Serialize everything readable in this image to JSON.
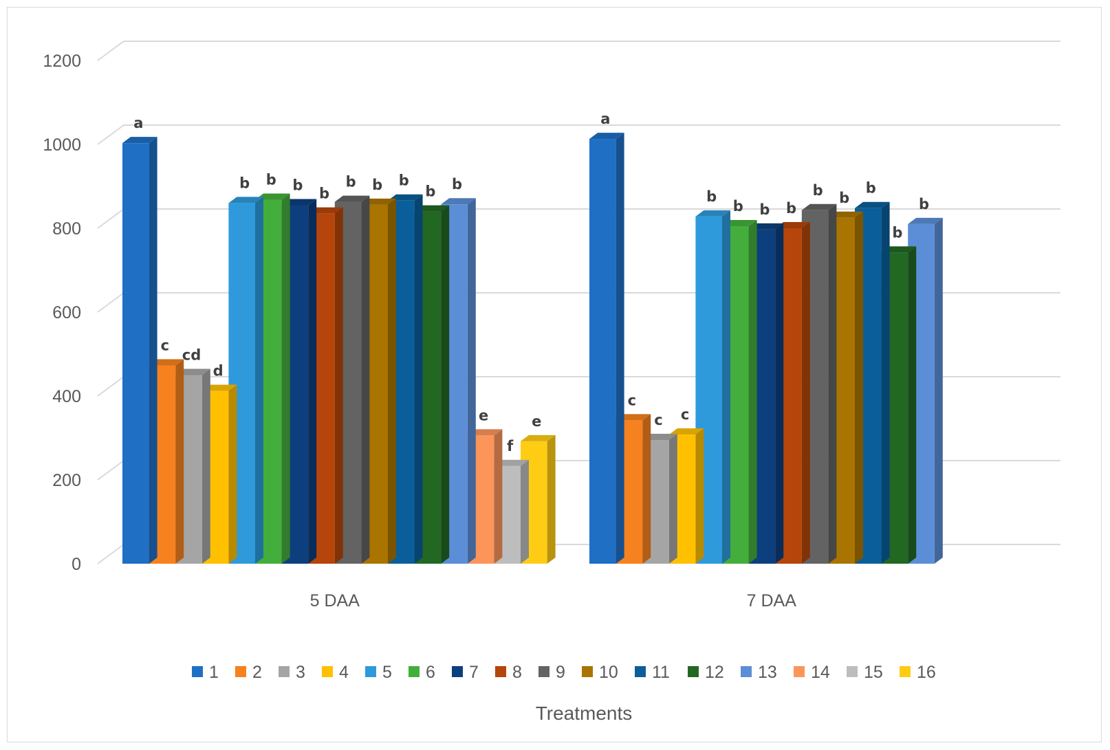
{
  "chart_data": {
    "type": "bar",
    "title": "",
    "xlabel": "Treatments",
    "ylabel": "",
    "ylim": [
      0,
      1200
    ],
    "yticks": [
      0,
      200,
      400,
      600,
      800,
      1000,
      1200
    ],
    "grid": true,
    "legend_position": "bottom",
    "style": "3d-clustered-column",
    "categories": [
      "5 DAA",
      "7 DAA"
    ],
    "series": [
      {
        "name": "1",
        "color": "#1F6FC5",
        "values": [
          1003,
          1013
        ],
        "letters": [
          "a",
          "a"
        ]
      },
      {
        "name": "2",
        "color": "#F6811F",
        "values": [
          473,
          342
        ],
        "letters": [
          "c",
          "c"
        ]
      },
      {
        "name": "3",
        "color": "#A5A5A5",
        "values": [
          450,
          295
        ],
        "letters": [
          "cd",
          "c"
        ]
      },
      {
        "name": "4",
        "color": "#FFC000",
        "values": [
          412,
          308
        ],
        "letters": [
          "d",
          "c"
        ]
      },
      {
        "name": "5",
        "color": "#2E9ADB",
        "values": [
          860,
          828
        ],
        "letters": [
          "b",
          "b"
        ]
      },
      {
        "name": "6",
        "color": "#44AE3C",
        "values": [
          868,
          805
        ],
        "letters": [
          "b",
          "b"
        ]
      },
      {
        "name": "7",
        "color": "#0D3F7E",
        "values": [
          855,
          797
        ],
        "letters": [
          "b",
          "b"
        ]
      },
      {
        "name": "8",
        "color": "#B5450A",
        "values": [
          835,
          800
        ],
        "letters": [
          "b",
          "b"
        ]
      },
      {
        "name": "9",
        "color": "#636363",
        "values": [
          863,
          843
        ],
        "letters": [
          "b",
          "b"
        ]
      },
      {
        "name": "10",
        "color": "#A97400",
        "values": [
          856,
          825
        ],
        "letters": [
          "b",
          "b"
        ]
      },
      {
        "name": "11",
        "color": "#0A5F9A",
        "values": [
          866,
          848
        ],
        "letters": [
          "b",
          "b"
        ]
      },
      {
        "name": "12",
        "color": "#226823",
        "values": [
          840,
          742
        ],
        "letters": [
          "b",
          "b"
        ]
      },
      {
        "name": "13",
        "color": "#5B8ED6",
        "values": [
          857,
          810
        ],
        "letters": [
          "b",
          "b"
        ]
      },
      {
        "name": "14",
        "color": "#FB955A",
        "values": [
          306,
          null
        ],
        "letters": [
          "e",
          ""
        ]
      },
      {
        "name": "15",
        "color": "#BDBDBD",
        "values": [
          233,
          null
        ],
        "letters": [
          "f",
          ""
        ]
      },
      {
        "name": "16",
        "color": "#FFCC14",
        "values": [
          292,
          null
        ],
        "letters": [
          "e",
          ""
        ]
      }
    ]
  }
}
